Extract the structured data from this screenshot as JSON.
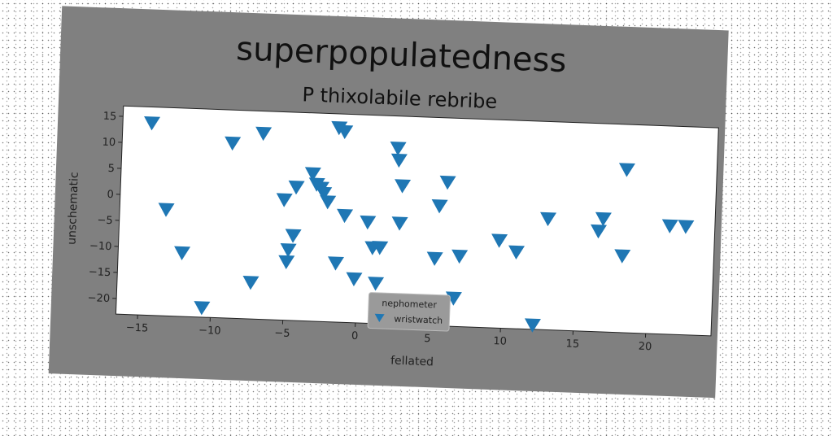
{
  "chart_data": {
    "type": "scatter",
    "title": "superpopulatedness",
    "subtitle": "P thixolabile rebribe",
    "xlabel": "fellated",
    "ylabel": "unschematic",
    "xlim": [
      -16.5,
      24.5
    ],
    "ylim": [
      -23,
      17
    ],
    "xticks": [
      -15,
      -10,
      -5,
      0,
      5,
      10,
      15,
      20
    ],
    "yticks": [
      -20,
      -15,
      -10,
      -5,
      0,
      5,
      10,
      15
    ],
    "grid": false,
    "legend": {
      "title": "nephometer",
      "placement": "lower-center"
    },
    "series": [
      {
        "name": "wristwatch",
        "color": "#1f77b4",
        "marker": "triangle-down",
        "points": [
          [
            -14.5,
            13.9
          ],
          [
            -13.3,
            -2.6
          ],
          [
            -12.1,
            -10.8
          ],
          [
            -10.6,
            -21.2
          ],
          [
            -8.9,
            10.6
          ],
          [
            -7.3,
            -16.0
          ],
          [
            -6.8,
            12.7
          ],
          [
            -5.2,
            0.1
          ],
          [
            -4.9,
            -11.8
          ],
          [
            -4.8,
            -9.5
          ],
          [
            -4.5,
            -6.7
          ],
          [
            -4.4,
            2.6
          ],
          [
            -3.3,
            5.3
          ],
          [
            -3.0,
            3.3
          ],
          [
            -2.7,
            2.6
          ],
          [
            -2.5,
            1.6
          ],
          [
            -2.2,
            0.0
          ],
          [
            -1.6,
            14.3
          ],
          [
            -1.5,
            -11.7
          ],
          [
            -1.2,
            13.6
          ],
          [
            -1.0,
            -2.5
          ],
          [
            -0.2,
            -14.6
          ],
          [
            0.6,
            -3.6
          ],
          [
            1.0,
            -8.5
          ],
          [
            1.3,
            -15.3
          ],
          [
            1.5,
            -8.4
          ],
          [
            2.5,
            10.8
          ],
          [
            2.6,
            8.5
          ],
          [
            2.8,
            -3.6
          ],
          [
            2.9,
            3.6
          ],
          [
            5.3,
            -10.1
          ],
          [
            5.5,
            0.0
          ],
          [
            6.0,
            4.6
          ],
          [
            6.7,
            -17.6
          ],
          [
            7.0,
            -9.5
          ],
          [
            9.7,
            -6.2
          ],
          [
            10.9,
            -8.3
          ],
          [
            12.2,
            -22.2
          ],
          [
            13.0,
            -1.7
          ],
          [
            16.5,
            -3.7
          ],
          [
            16.8,
            -1.3
          ],
          [
            18.2,
            -8.3
          ],
          [
            18.3,
            8.3
          ],
          [
            21.4,
            -2.2
          ],
          [
            22.5,
            -2.2
          ]
        ]
      }
    ]
  }
}
